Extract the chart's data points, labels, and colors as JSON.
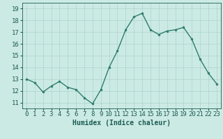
{
  "x": [
    0,
    1,
    2,
    3,
    4,
    5,
    6,
    7,
    8,
    9,
    10,
    11,
    12,
    13,
    14,
    15,
    16,
    17,
    18,
    19,
    20,
    21,
    22,
    23
  ],
  "y": [
    13.0,
    12.7,
    11.9,
    12.4,
    12.8,
    12.3,
    12.1,
    11.4,
    10.9,
    12.1,
    14.0,
    15.4,
    17.2,
    18.3,
    18.6,
    17.2,
    16.8,
    17.1,
    17.2,
    17.4,
    16.4,
    14.7,
    13.5,
    12.6
  ],
  "line_color": "#2e7d6e",
  "marker": "o",
  "markersize": 2.0,
  "linewidth": 1.0,
  "bg_color": "#cceae4",
  "grid_color": "#aad4cc",
  "xlabel": "Humidex (Indice chaleur)",
  "xlabel_fontsize": 7,
  "xlabel_color": "#1a5c52",
  "tick_color": "#1a5c52",
  "tick_fontsize": 6.5,
  "ylim": [
    10.5,
    19.5
  ],
  "yticks": [
    11,
    12,
    13,
    14,
    15,
    16,
    17,
    18,
    19
  ],
  "xticks": [
    0,
    1,
    2,
    3,
    4,
    5,
    6,
    7,
    8,
    9,
    10,
    11,
    12,
    13,
    14,
    15,
    16,
    17,
    18,
    19,
    20,
    21,
    22,
    23
  ],
  "xlim": [
    -0.5,
    23.5
  ]
}
